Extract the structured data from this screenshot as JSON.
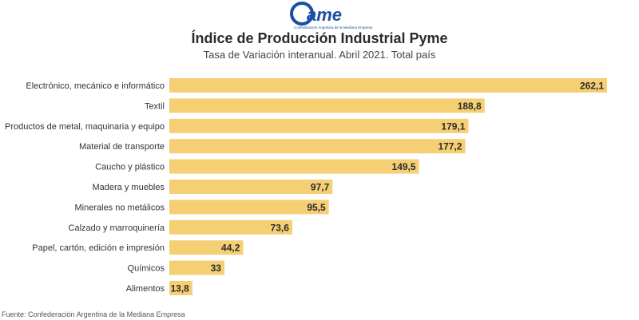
{
  "logo": {
    "text": "came",
    "subtext": "Confederación Argentina de la Mediana Empresa",
    "color": "#1a4fa3"
  },
  "chart_data": {
    "type": "bar",
    "orientation": "horizontal",
    "title": "Índice de Producción Industrial Pyme",
    "subtitle": "Tasa de Variación interanual. Abril 2021. Total país",
    "xlabel": "",
    "ylabel": "",
    "xlim": [
      0,
      262.1
    ],
    "grid": false,
    "bar_color": "#f5cf74",
    "categories": [
      "Electrónico, mecánico e informático",
      "Textil",
      "Productos de metal, maquinaria y equipo",
      "Material de transporte",
      "Caucho y plástico",
      "Madera y muebles",
      "Minerales no metálicos",
      "Calzado y marroquinería",
      "Papel, cartón, edición e impresión",
      "Químicos",
      "Alimentos"
    ],
    "values": [
      262.1,
      188.8,
      179.1,
      177.2,
      149.5,
      97.7,
      95.5,
      73.6,
      44.2,
      33,
      13.8
    ],
    "value_labels": [
      "262,1",
      "188,8",
      "179,1",
      "177,2",
      "149,5",
      "97,7",
      "95,5",
      "73,6",
      "44,2",
      "33",
      "13,8"
    ]
  },
  "footer": {
    "source": "Fuente: Confederación Argentina de la Mediana Empresa"
  }
}
